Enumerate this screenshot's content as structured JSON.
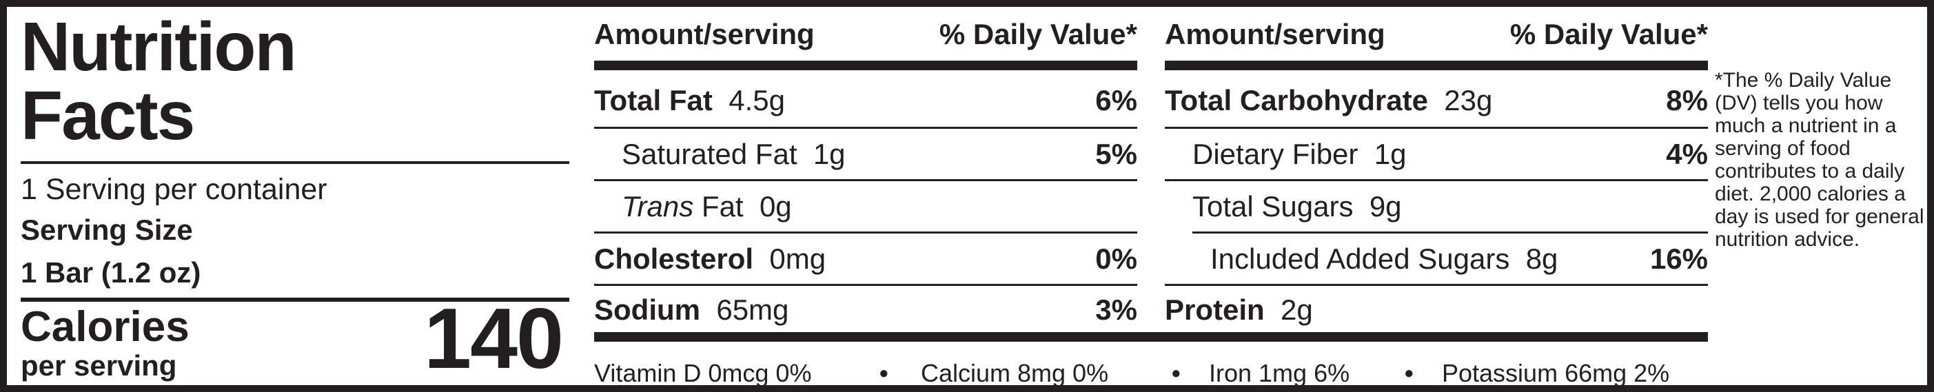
{
  "panel": {
    "title_line1": "Nutrition",
    "title_line2": "Facts",
    "servings_per_container": "1 Serving per container",
    "serving_size_label": "Serving Size",
    "serving_size_value": "1 Bar (1.2 oz)",
    "calories_label": "Calories",
    "calories_sub": "per serving",
    "calories_value": "140"
  },
  "columns": [
    {
      "header_amount": "Amount/serving",
      "header_dv": "% Daily Value*",
      "rows": [
        {
          "name": "Total Fat",
          "amount": "4.5g",
          "dv": "6%"
        },
        {
          "name": "Saturated Fat",
          "amount": "1g",
          "dv": "5%"
        },
        {
          "name_italic": "Trans",
          "name": "Fat",
          "amount": "0g",
          "dv": ""
        },
        {
          "name": "Cholesterol",
          "amount": "0mg",
          "dv": "0%"
        },
        {
          "name": "Sodium",
          "amount": "65mg",
          "dv": "3%"
        }
      ]
    },
    {
      "header_amount": "Amount/serving",
      "header_dv": "% Daily Value*",
      "rows": [
        {
          "name": "Total Carbohydrate",
          "amount": "23g",
          "dv": "8%"
        },
        {
          "name": "Dietary Fiber",
          "amount": "1g",
          "dv": "4%"
        },
        {
          "name": "Total Sugars",
          "amount": "9g",
          "dv": ""
        },
        {
          "name": "Included Added Sugars",
          "amount": "8g",
          "dv": "16%"
        },
        {
          "name": "Protein",
          "amount": "2g",
          "dv": ""
        }
      ]
    }
  ],
  "vitamins": [
    {
      "text": "Vitamin D 0mcg 0%"
    },
    {
      "text": "Calcium 8mg 0%"
    },
    {
      "text": "Iron 1mg 6%"
    },
    {
      "text": "Potassium 66mg 2%"
    }
  ],
  "bullet": "•",
  "footnote": "*The % Daily Value (DV) tells you how much a nutrient in a serving of food contributes to a daily diet. 2,000 calories a day is used for general nutrition advice."
}
